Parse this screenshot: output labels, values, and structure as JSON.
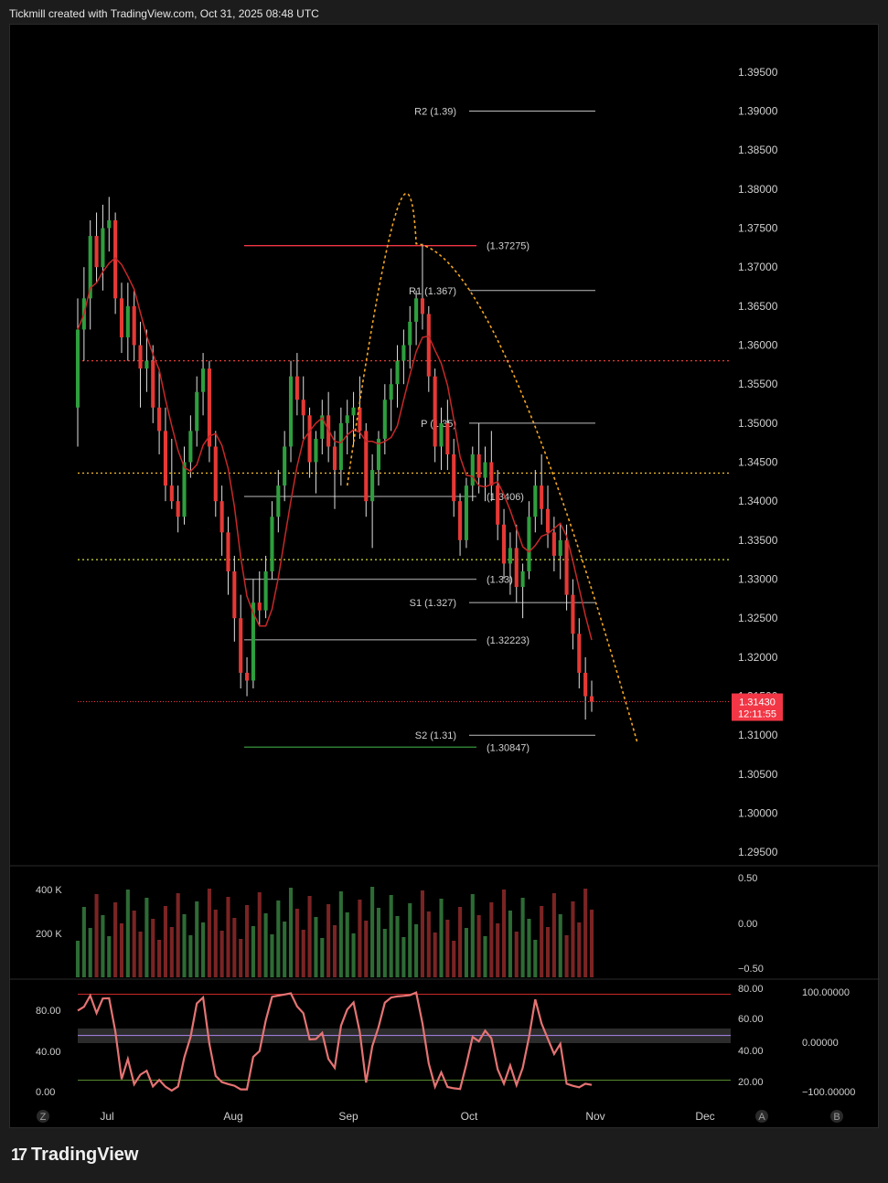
{
  "header": {
    "title": "Tickmill created with TradingView.com, Oct 31, 2025 08:48 UTC"
  },
  "footer": {
    "brand": "TradingView",
    "logo_icon": "tradingview-logo-icon"
  },
  "chart_data": {
    "type": "candlestick",
    "price_axis": {
      "ticks": [
        "1.39500",
        "1.39000",
        "1.38500",
        "1.38000",
        "1.37500",
        "1.37000",
        "1.36500",
        "1.36000",
        "1.35500",
        "1.35000",
        "1.34500",
        "1.34000",
        "1.33500",
        "1.33000",
        "1.32500",
        "1.32000",
        "1.31500",
        "1.31000",
        "1.30500",
        "1.30000",
        "1.29500"
      ],
      "range": [
        1.2935,
        1.3985
      ]
    },
    "time_axis": {
      "ticks": [
        "Jul",
        "Aug",
        "Sep",
        "Oct",
        "Nov",
        "Dec"
      ]
    },
    "current_price": {
      "value": "1.31430",
      "countdown": "12:11:55",
      "color": "#f23645"
    },
    "levels": [
      {
        "label": "R2 (1.39)",
        "value": 1.39
      },
      {
        "label": "R1 (1.367)",
        "value": 1.367
      },
      {
        "label": "P (1.35)",
        "value": 1.35
      },
      {
        "label": "S1 (1.327)",
        "value": 1.327
      },
      {
        "label": "S2 (1.31)",
        "value": 1.31
      }
    ],
    "horizontal_lines": [
      {
        "label": "(1.37275)",
        "value": 1.37275,
        "color": "#f23645"
      },
      {
        "label": "(1.3406)",
        "value": 1.3406,
        "color": "#888888"
      },
      {
        "label": "(1.33)",
        "value": 1.33,
        "color": "#888888"
      },
      {
        "label": "(1.32223)",
        "value": 1.32223,
        "color": "#888888"
      },
      {
        "label": "(1.30847)",
        "value": 1.30847,
        "color": "#2e7d32"
      }
    ],
    "dotted_lines": [
      {
        "value": 1.358,
        "color": "#e53935"
      },
      {
        "value": 1.3436,
        "color": "#fbc02d"
      },
      {
        "value": 1.3325,
        "color": "#c0ca33"
      }
    ],
    "candles": [
      [
        1.352,
        1.366,
        1.347,
        1.362
      ],
      [
        1.362,
        1.37,
        1.358,
        1.366
      ],
      [
        1.366,
        1.376,
        1.362,
        1.374
      ],
      [
        1.374,
        1.377,
        1.368,
        1.37
      ],
      [
        1.37,
        1.378,
        1.367,
        1.375
      ],
      [
        1.375,
        1.379,
        1.372,
        1.376
      ],
      [
        1.376,
        1.377,
        1.364,
        1.366
      ],
      [
        1.366,
        1.368,
        1.359,
        1.361
      ],
      [
        1.361,
        1.368,
        1.358,
        1.365
      ],
      [
        1.365,
        1.367,
        1.358,
        1.36
      ],
      [
        1.36,
        1.363,
        1.352,
        1.357
      ],
      [
        1.357,
        1.362,
        1.354,
        1.358
      ],
      [
        1.358,
        1.36,
        1.35,
        1.352
      ],
      [
        1.352,
        1.357,
        1.346,
        1.349
      ],
      [
        1.349,
        1.352,
        1.34,
        1.342
      ],
      [
        1.342,
        1.348,
        1.339,
        1.34
      ],
      [
        1.34,
        1.342,
        1.336,
        1.338
      ],
      [
        1.338,
        1.347,
        1.337,
        1.345
      ],
      [
        1.345,
        1.351,
        1.343,
        1.349
      ],
      [
        1.349,
        1.356,
        1.347,
        1.354
      ],
      [
        1.354,
        1.359,
        1.351,
        1.357
      ],
      [
        1.357,
        1.358,
        1.345,
        1.347
      ],
      [
        1.347,
        1.349,
        1.338,
        1.34
      ],
      [
        1.34,
        1.342,
        1.333,
        1.336
      ],
      [
        1.336,
        1.338,
        1.328,
        1.331
      ],
      [
        1.331,
        1.333,
        1.322,
        1.325
      ],
      [
        1.325,
        1.328,
        1.316,
        1.318
      ],
      [
        1.318,
        1.32,
        1.315,
        1.317
      ],
      [
        1.317,
        1.33,
        1.316,
        1.327
      ],
      [
        1.327,
        1.331,
        1.324,
        1.326
      ],
      [
        1.326,
        1.333,
        1.325,
        1.331
      ],
      [
        1.331,
        1.34,
        1.33,
        1.338
      ],
      [
        1.338,
        1.344,
        1.336,
        1.342
      ],
      [
        1.342,
        1.349,
        1.34,
        1.347
      ],
      [
        1.347,
        1.358,
        1.345,
        1.356
      ],
      [
        1.356,
        1.359,
        1.351,
        1.353
      ],
      [
        1.353,
        1.356,
        1.348,
        1.351
      ],
      [
        1.351,
        1.352,
        1.343,
        1.345
      ],
      [
        1.345,
        1.349,
        1.341,
        1.348
      ],
      [
        1.348,
        1.353,
        1.346,
        1.351
      ],
      [
        1.351,
        1.354,
        1.345,
        1.347
      ],
      [
        1.347,
        1.349,
        1.339,
        1.344
      ],
      [
        1.344,
        1.352,
        1.342,
        1.35
      ],
      [
        1.35,
        1.353,
        1.346,
        1.351
      ],
      [
        1.351,
        1.354,
        1.347,
        1.352
      ],
      [
        1.352,
        1.356,
        1.348,
        1.349
      ],
      [
        1.349,
        1.35,
        1.338,
        1.34
      ],
      [
        1.34,
        1.346,
        1.334,
        1.344
      ],
      [
        1.344,
        1.349,
        1.342,
        1.348
      ],
      [
        1.348,
        1.355,
        1.346,
        1.353
      ],
      [
        1.353,
        1.357,
        1.349,
        1.355
      ],
      [
        1.355,
        1.36,
        1.352,
        1.358
      ],
      [
        1.358,
        1.362,
        1.355,
        1.36
      ],
      [
        1.36,
        1.365,
        1.357,
        1.363
      ],
      [
        1.363,
        1.367,
        1.36,
        1.366
      ],
      [
        1.366,
        1.373,
        1.362,
        1.364
      ],
      [
        1.364,
        1.365,
        1.354,
        1.356
      ],
      [
        1.356,
        1.357,
        1.345,
        1.347
      ],
      [
        1.347,
        1.352,
        1.344,
        1.35
      ],
      [
        1.35,
        1.353,
        1.344,
        1.346
      ],
      [
        1.346,
        1.348,
        1.338,
        1.34
      ],
      [
        1.34,
        1.341,
        1.333,
        1.335
      ],
      [
        1.335,
        1.343,
        1.334,
        1.342
      ],
      [
        1.342,
        1.347,
        1.34,
        1.346
      ],
      [
        1.346,
        1.35,
        1.341,
        1.343
      ],
      [
        1.343,
        1.347,
        1.34,
        1.345
      ],
      [
        1.345,
        1.349,
        1.34,
        1.342
      ],
      [
        1.342,
        1.344,
        1.335,
        1.337
      ],
      [
        1.337,
        1.339,
        1.33,
        1.332
      ],
      [
        1.332,
        1.336,
        1.328,
        1.334
      ],
      [
        1.334,
        1.337,
        1.327,
        1.329
      ],
      [
        1.329,
        1.332,
        1.325,
        1.331
      ],
      [
        1.331,
        1.34,
        1.33,
        1.338
      ],
      [
        1.338,
        1.344,
        1.336,
        1.342
      ],
      [
        1.342,
        1.346,
        1.337,
        1.339
      ],
      [
        1.339,
        1.342,
        1.334,
        1.336
      ],
      [
        1.336,
        1.338,
        1.331,
        1.333
      ],
      [
        1.333,
        1.337,
        1.33,
        1.335
      ],
      [
        1.335,
        1.337,
        1.326,
        1.328
      ],
      [
        1.328,
        1.33,
        1.321,
        1.323
      ],
      [
        1.323,
        1.325,
        1.316,
        1.318
      ],
      [
        1.318,
        1.32,
        1.312,
        1.315
      ],
      [
        1.315,
        1.317,
        1.313,
        1.3143
      ]
    ],
    "volume_axis": {
      "left_ticks": [
        "400 K",
        "200 K"
      ],
      "right_ticks": [
        "0.50",
        "0.00",
        "−0.50"
      ]
    },
    "oscillator_axis": {
      "left_ticks": [
        "80.00",
        "40.00",
        "0.00"
      ],
      "right_ticks": [
        "80.00",
        "60.00",
        "40.00",
        "20.00"
      ],
      "far_right_ticks": [
        "100.00000",
        "0.00000",
        "−100.00000"
      ]
    },
    "axis_markers": {
      "left": "Z",
      "right_a": "A",
      "right_b": "B"
    },
    "projection": {
      "style": "dotted-arc",
      "color": "#f5a623"
    }
  },
  "colors": {
    "up": "#2e9e3e",
    "down": "#e53935",
    "background": "#000000",
    "frame": "#1c1c1c"
  }
}
